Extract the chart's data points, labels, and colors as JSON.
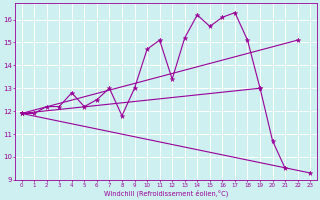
{
  "xlabel": "Windchill (Refroidissement éolien,°C)",
  "bg_color": "#cff0f0",
  "line_color": "#990099",
  "grid_color": "#ffffff",
  "xlim": [
    -0.5,
    23.5
  ],
  "ylim": [
    9,
    16.7
  ],
  "yticks": [
    9,
    10,
    11,
    12,
    13,
    14,
    15,
    16
  ],
  "xticks": [
    0,
    1,
    2,
    3,
    4,
    5,
    6,
    7,
    8,
    9,
    10,
    11,
    12,
    13,
    14,
    15,
    16,
    17,
    18,
    19,
    20,
    21,
    22,
    23
  ],
  "series": {
    "line1_x": [
      0,
      1,
      2,
      3,
      4,
      5,
      6,
      7,
      8,
      9,
      10,
      11,
      12,
      13,
      14,
      15,
      16,
      17,
      18,
      19,
      20,
      21
    ],
    "line1_y": [
      11.9,
      11.9,
      12.2,
      12.2,
      12.8,
      12.2,
      12.5,
      13.0,
      11.8,
      13.0,
      14.7,
      15.1,
      13.4,
      15.2,
      16.2,
      15.7,
      16.1,
      16.3,
      15.1,
      13.0,
      10.7,
      9.5
    ],
    "line2_x": [
      0,
      22
    ],
    "line2_y": [
      11.9,
      15.1
    ],
    "line3_x": [
      0,
      23
    ],
    "line3_y": [
      11.9,
      9.3
    ],
    "line4_x": [
      0,
      19
    ],
    "line4_y": [
      11.9,
      13.0
    ]
  }
}
